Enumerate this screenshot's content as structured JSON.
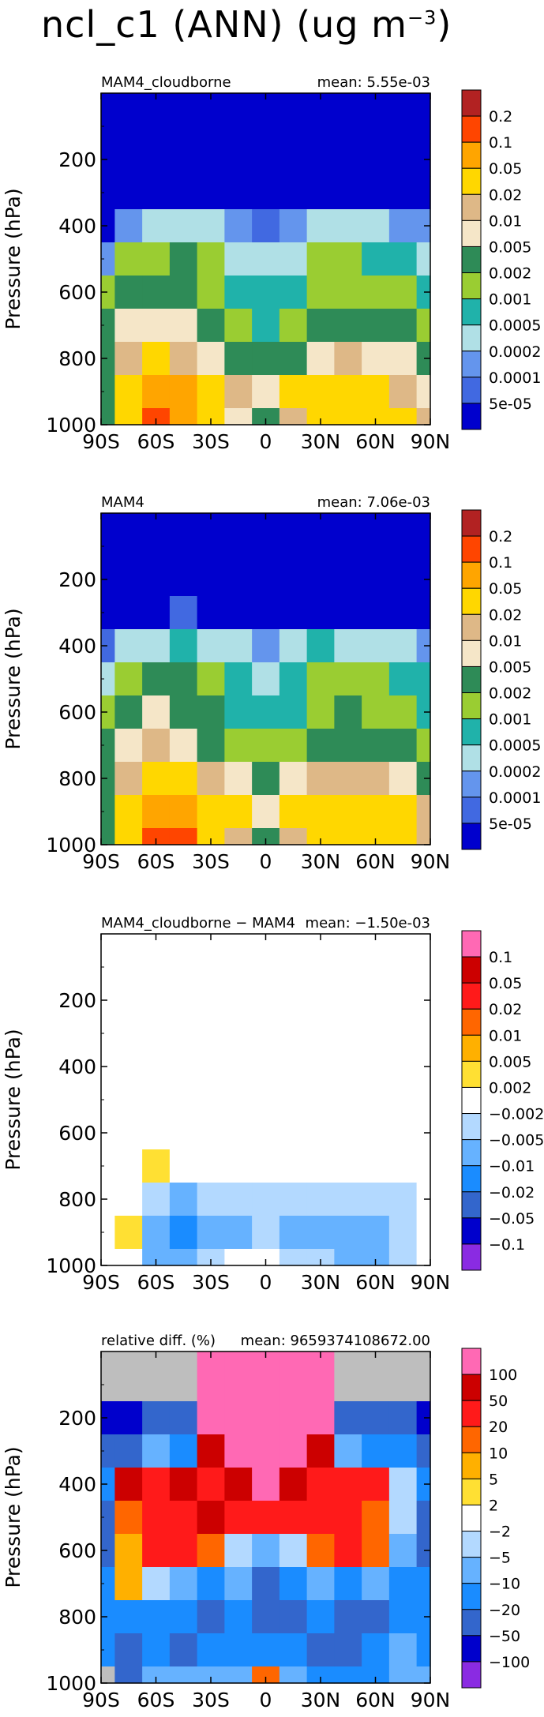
{
  "title": {
    "text": "ncl_c1 (ANN) (ug m",
    "exponent": "−3",
    "close": ")"
  },
  "panels": [
    {
      "id": "p1",
      "left_label": "MAM4_cloudborne",
      "right_label": "mean: 5.55e-03",
      "palette": "abs",
      "legend_labels": [
        "0.2",
        "0.1",
        "0.05",
        "0.02",
        "0.01",
        "0.005",
        "0.002",
        "0.001",
        "0.0005",
        "0.0002",
        "0.0001",
        "5e-05"
      ],
      "legend_colors": [
        "#b22222",
        "#ff4500",
        "#ffa500",
        "#ffd700",
        "#deb887",
        "#f5e6c8",
        "#2e8b57",
        "#9acd32",
        "#20b2aa",
        "#b0e0e6",
        "#6495ed",
        "#4169e1",
        "#0000cd"
      ]
    },
    {
      "id": "p2",
      "left_label": "MAM4",
      "right_label": "mean: 7.06e-03",
      "palette": "abs",
      "legend_labels": [
        "0.2",
        "0.1",
        "0.05",
        "0.02",
        "0.01",
        "0.005",
        "0.002",
        "0.001",
        "0.0005",
        "0.0002",
        "0.0001",
        "5e-05"
      ],
      "legend_colors": [
        "#b22222",
        "#ff4500",
        "#ffa500",
        "#ffd700",
        "#deb887",
        "#f5e6c8",
        "#2e8b57",
        "#9acd32",
        "#20b2aa",
        "#b0e0e6",
        "#6495ed",
        "#4169e1",
        "#0000cd"
      ]
    },
    {
      "id": "p3",
      "left_label": "MAM4_cloudborne − MAM4",
      "right_label": "mean: −1.50e-03",
      "palette": "diff",
      "legend_labels": [
        "0.1",
        "0.05",
        "0.02",
        "0.01",
        "0.005",
        "0.002",
        "−0.002",
        "−0.005",
        "−0.01",
        "−0.02",
        "−0.05",
        "−0.1"
      ],
      "legend_colors": [
        "#ff69b4",
        "#cc0000",
        "#ff1a1a",
        "#ff6600",
        "#ffb000",
        "#ffe033",
        "#ffffff",
        "#b3d9ff",
        "#66b2ff",
        "#1a8cff",
        "#3366cc",
        "#0000cc",
        "#8a2be2"
      ]
    },
    {
      "id": "p4",
      "left_label": "relative diff. (%)",
      "right_label": "mean: 9659374108672.00",
      "palette": "diff",
      "legend_labels": [
        "100",
        "50",
        "20",
        "10",
        "5",
        "2",
        "−2",
        "−5",
        "−10",
        "−20",
        "−50",
        "−100"
      ],
      "legend_colors": [
        "#ff69b4",
        "#cc0000",
        "#ff1a1a",
        "#ff6600",
        "#ffb000",
        "#ffe033",
        "#ffffff",
        "#b3d9ff",
        "#66b2ff",
        "#1a8cff",
        "#3366cc",
        "#0000cc",
        "#8a2be2"
      ]
    }
  ],
  "chart_data": [
    {
      "type": "heatmap",
      "title": "MAM4_cloudborne",
      "ylabel": "Pressure (hPa)",
      "x_ticks": [
        "90S",
        "60S",
        "30S",
        "0",
        "30N",
        "60N",
        "90N"
      ],
      "y_ticks": [
        "200",
        "400",
        "600",
        "800",
        "1000"
      ],
      "xlim": [
        -90,
        90
      ],
      "ylim": [
        1000,
        0
      ],
      "levels": [
        5e-05,
        0.0001,
        0.0002,
        0.0005,
        0.001,
        0.002,
        0.005,
        0.01,
        0.02,
        0.05,
        0.1,
        0.2
      ],
      "x": [
        -90,
        -75,
        -60,
        -45,
        -30,
        -15,
        0,
        15,
        30,
        45,
        60,
        75,
        90
      ],
      "y": [
        100,
        200,
        300,
        400,
        500,
        600,
        700,
        800,
        900,
        1000
      ],
      "values": [
        [
          3e-05,
          3e-05,
          3e-05,
          3e-05,
          3e-05,
          3e-05,
          3e-05,
          3e-05,
          3e-05,
          3e-05,
          3e-05,
          3e-05,
          3e-05
        ],
        [
          3e-05,
          3e-05,
          3e-05,
          3e-05,
          3e-05,
          3e-05,
          3e-05,
          3e-05,
          3e-05,
          3e-05,
          3e-05,
          3e-05,
          3e-05
        ],
        [
          3e-05,
          3e-05,
          3e-05,
          3e-05,
          4e-05,
          3e-05,
          3e-05,
          3e-05,
          3e-05,
          3e-05,
          3e-05,
          3e-05,
          3e-05
        ],
        [
          4e-05,
          0.0001,
          0.0002,
          0.0004,
          0.0003,
          0.0001,
          5e-05,
          0.0001,
          0.0004,
          0.0003,
          0.0002,
          0.00015,
          0.0001
        ],
        [
          0.0001,
          0.001,
          0.0015,
          0.002,
          0.001,
          0.0004,
          0.0003,
          0.0004,
          0.001,
          0.001,
          0.0008,
          0.0006,
          0.0004
        ],
        [
          0.001,
          0.003,
          0.004,
          0.003,
          0.0015,
          0.0006,
          0.0005,
          0.0006,
          0.0012,
          0.0015,
          0.0012,
          0.001,
          0.0006
        ],
        [
          0.002,
          0.006,
          0.008,
          0.006,
          0.003,
          0.001,
          0.0008,
          0.001,
          0.002,
          0.003,
          0.003,
          0.002,
          0.001
        ],
        [
          0.002,
          0.01,
          0.02,
          0.015,
          0.008,
          0.004,
          0.003,
          0.004,
          0.008,
          0.01,
          0.008,
          0.006,
          0.003
        ],
        [
          0.002,
          0.02,
          0.05,
          0.06,
          0.03,
          0.015,
          0.005,
          0.02,
          0.02,
          0.03,
          0.025,
          0.015,
          0.008
        ],
        [
          0.002,
          0.02,
          0.1,
          0.08,
          0.03,
          0.008,
          0.002,
          0.01,
          0.02,
          0.03,
          0.03,
          0.02,
          0.01
        ]
      ]
    },
    {
      "type": "heatmap",
      "title": "MAM4",
      "ylabel": "Pressure (hPa)",
      "x_ticks": [
        "90S",
        "60S",
        "30S",
        "0",
        "30N",
        "60N",
        "90N"
      ],
      "y_ticks": [
        "200",
        "400",
        "600",
        "800",
        "1000"
      ],
      "xlim": [
        -90,
        90
      ],
      "ylim": [
        1000,
        0
      ],
      "levels": [
        5e-05,
        0.0001,
        0.0002,
        0.0005,
        0.001,
        0.002,
        0.005,
        0.01,
        0.02,
        0.05,
        0.1,
        0.2
      ],
      "x": [
        -90,
        -75,
        -60,
        -45,
        -30,
        -15,
        0,
        15,
        30,
        45,
        60,
        75,
        90
      ],
      "y": [
        100,
        200,
        300,
        400,
        500,
        600,
        700,
        800,
        900,
        1000
      ],
      "values": [
        [
          3e-05,
          3e-05,
          3e-05,
          3e-05,
          3e-05,
          3e-05,
          3e-05,
          3e-05,
          3e-05,
          3e-05,
          3e-05,
          3e-05,
          3e-05
        ],
        [
          3e-05,
          3e-05,
          3e-05,
          3e-05,
          3e-05,
          3e-05,
          3e-05,
          3e-05,
          3e-05,
          3e-05,
          3e-05,
          3e-05,
          3e-05
        ],
        [
          3e-05,
          3e-05,
          4e-05,
          5e-05,
          4e-05,
          3e-05,
          3e-05,
          3e-05,
          4e-05,
          4e-05,
          3e-05,
          3e-05,
          3e-05
        ],
        [
          5e-05,
          0.0002,
          0.0003,
          0.0005,
          0.0004,
          0.0002,
          0.0001,
          0.0002,
          0.0005,
          0.0004,
          0.0003,
          0.0002,
          0.0001
        ],
        [
          0.0002,
          0.0015,
          0.002,
          0.0025,
          0.0015,
          0.0006,
          0.0004,
          0.0006,
          0.0015,
          0.0015,
          0.001,
          0.0008,
          0.0005
        ],
        [
          0.001,
          0.004,
          0.005,
          0.004,
          0.002,
          0.0008,
          0.0006,
          0.0008,
          0.0015,
          0.002,
          0.0015,
          0.0012,
          0.0008
        ],
        [
          0.002,
          0.008,
          0.01,
          0.008,
          0.004,
          0.0015,
          0.001,
          0.0015,
          0.003,
          0.004,
          0.004,
          0.003,
          0.0015
        ],
        [
          0.002,
          0.015,
          0.025,
          0.02,
          0.012,
          0.006,
          0.004,
          0.006,
          0.012,
          0.015,
          0.012,
          0.008,
          0.004
        ],
        [
          0.002,
          0.03,
          0.06,
          0.07,
          0.04,
          0.02,
          0.008,
          0.03,
          0.03,
          0.04,
          0.03,
          0.02,
          0.01
        ],
        [
          0.002,
          0.03,
          0.12,
          0.1,
          0.04,
          0.01,
          0.003,
          0.015,
          0.03,
          0.04,
          0.04,
          0.03,
          0.012
        ]
      ]
    },
    {
      "type": "heatmap",
      "title": "MAM4_cloudborne − MAM4",
      "ylabel": "Pressure (hPa)",
      "x_ticks": [
        "90S",
        "60S",
        "30S",
        "0",
        "30N",
        "60N",
        "90N"
      ],
      "y_ticks": [
        "200",
        "400",
        "600",
        "800",
        "1000"
      ],
      "xlim": [
        -90,
        90
      ],
      "ylim": [
        1000,
        0
      ],
      "levels": [
        -0.1,
        -0.05,
        -0.02,
        -0.01,
        -0.005,
        -0.002,
        0.002,
        0.005,
        0.01,
        0.02,
        0.05,
        0.1
      ],
      "x": [
        -90,
        -75,
        -60,
        -45,
        -30,
        -15,
        0,
        15,
        30,
        45,
        60,
        75,
        90
      ],
      "y": [
        100,
        200,
        300,
        400,
        500,
        600,
        700,
        800,
        900,
        1000
      ],
      "values": [
        [
          0,
          0,
          0,
          0,
          0,
          0,
          0,
          0,
          0,
          0,
          0,
          0,
          0
        ],
        [
          0,
          0,
          0,
          0,
          0,
          0,
          0,
          0,
          0,
          0,
          0,
          0,
          0
        ],
        [
          0,
          0,
          0,
          0,
          0,
          0,
          0,
          0,
          0,
          0,
          0,
          0,
          0
        ],
        [
          0,
          0,
          0,
          0,
          0,
          0,
          0,
          0,
          0,
          0,
          0,
          0,
          0
        ],
        [
          0,
          0,
          0,
          0,
          0,
          0,
          0,
          0,
          0,
          0,
          0,
          0,
          0
        ],
        [
          0,
          0,
          0,
          0,
          0,
          0,
          0,
          0,
          0,
          0,
          0,
          0,
          0
        ],
        [
          0,
          0,
          0.003,
          0,
          0,
          0,
          0,
          0,
          0,
          0,
          0,
          0,
          0
        ],
        [
          0,
          0,
          -0.004,
          -0.006,
          -0.004,
          -0.003,
          -0.004,
          -0.004,
          -0.003,
          -0.004,
          -0.004,
          -0.003,
          0
        ],
        [
          0,
          0.003,
          -0.01,
          -0.015,
          -0.008,
          -0.006,
          -0.003,
          -0.008,
          -0.006,
          -0.01,
          -0.008,
          -0.004,
          0
        ],
        [
          0,
          0,
          -0.006,
          -0.01,
          -0.003,
          0,
          0,
          -0.004,
          -0.005,
          -0.01,
          -0.006,
          -0.003,
          -0.002
        ]
      ]
    },
    {
      "type": "heatmap",
      "title": "relative diff. (%)",
      "ylabel": "Pressure (hPa)",
      "x_ticks": [
        "90S",
        "60S",
        "30S",
        "0",
        "30N",
        "60N",
        "90N"
      ],
      "y_ticks": [
        "200",
        "400",
        "600",
        "800",
        "1000"
      ],
      "xlim": [
        -90,
        90
      ],
      "ylim": [
        1000,
        0
      ],
      "levels": [
        -100,
        -50,
        -20,
        -10,
        -5,
        -2,
        2,
        5,
        10,
        20,
        50,
        100
      ],
      "x": [
        -90,
        -75,
        -60,
        -45,
        -30,
        -15,
        0,
        15,
        30,
        45,
        60,
        75,
        90
      ],
      "y": [
        100,
        200,
        300,
        400,
        500,
        600,
        700,
        800,
        900,
        1000
      ],
      "values": [
        [
          null,
          null,
          null,
          null,
          200,
          200,
          200,
          200,
          200,
          null,
          null,
          null,
          null
        ],
        [
          -60,
          -60,
          -30,
          -30,
          150,
          200,
          200,
          200,
          150,
          -30,
          -30,
          -30,
          -60
        ],
        [
          -30,
          -30,
          -10,
          -15,
          80,
          200,
          200,
          150,
          60,
          -10,
          -15,
          -20,
          -30
        ],
        [
          -20,
          60,
          30,
          50,
          40,
          60,
          150,
          80,
          40,
          30,
          20,
          -5,
          -20
        ],
        [
          -30,
          10,
          20,
          40,
          60,
          40,
          20,
          40,
          30,
          20,
          10,
          -5,
          -25
        ],
        [
          -25,
          5,
          30,
          30,
          10,
          -5,
          -10,
          -5,
          10,
          20,
          10,
          -10,
          -25
        ],
        [
          -20,
          5,
          -5,
          -10,
          -20,
          -10,
          -25,
          -20,
          -10,
          -15,
          -10,
          -15,
          -20
        ],
        [
          -20,
          -20,
          -20,
          -20,
          -25,
          -20,
          -30,
          -25,
          -20,
          -25,
          -25,
          -20,
          -20
        ],
        [
          -20,
          -30,
          -20,
          -25,
          -20,
          -20,
          -20,
          -20,
          -25,
          -25,
          -20,
          -10,
          -20
        ],
        [
          null,
          -30,
          -10,
          -10,
          -10,
          -10,
          10,
          -10,
          -15,
          -20,
          -15,
          -10,
          -10
        ]
      ]
    }
  ]
}
